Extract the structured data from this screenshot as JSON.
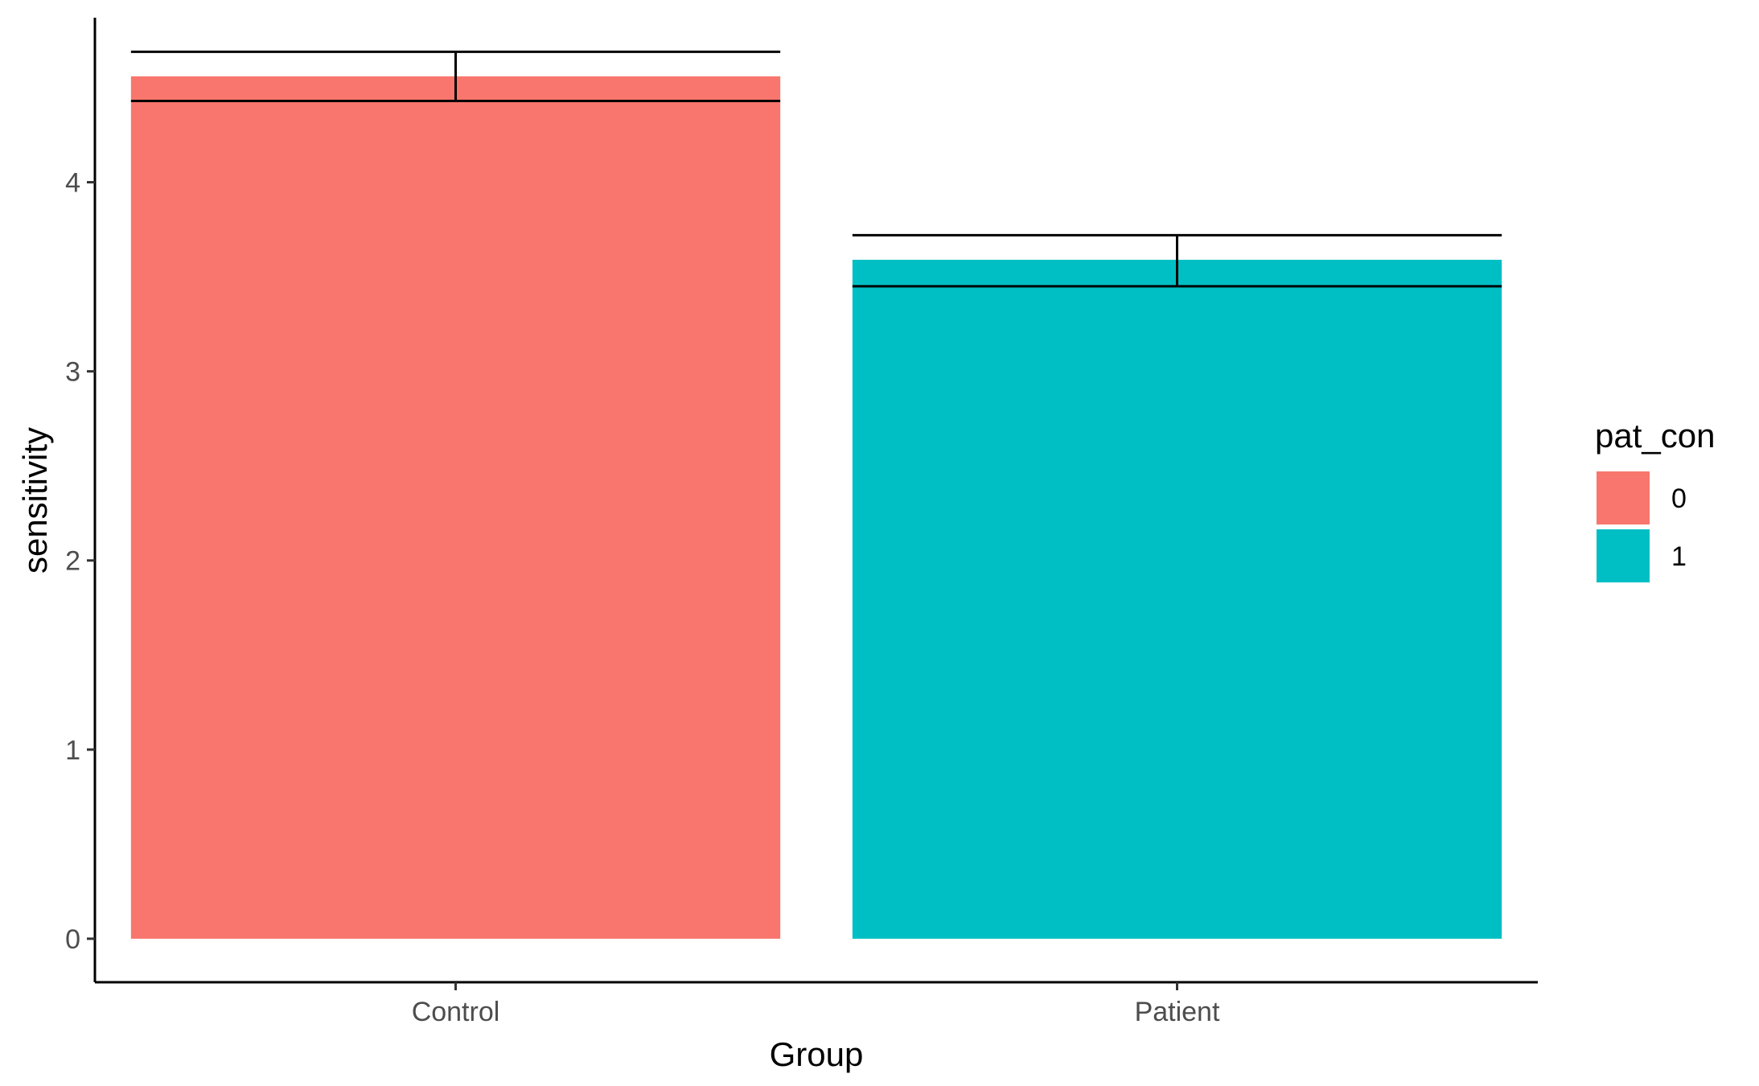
{
  "chart_data": {
    "type": "bar",
    "categories": [
      "Control",
      "Patient"
    ],
    "values": [
      4.56,
      3.59
    ],
    "error_bars": [
      {
        "lower": 4.43,
        "upper": 4.69
      },
      {
        "lower": 3.45,
        "upper": 3.72
      }
    ],
    "colors": [
      "#F8766D",
      "#00BFC4"
    ],
    "xlabel": "Group",
    "ylabel": "sensitivity",
    "ylim": [
      -0.23,
      4.87
    ],
    "yticks": [
      0,
      1,
      2,
      3,
      4
    ],
    "ytick_labels": [
      "0",
      "1",
      "2",
      "3",
      "4"
    ],
    "grid": false,
    "legend": {
      "title": "pat_con",
      "placement": "right",
      "entries": [
        {
          "label": "0",
          "color": "#F8766D"
        },
        {
          "label": "1",
          "color": "#00BFC4"
        }
      ]
    }
  }
}
